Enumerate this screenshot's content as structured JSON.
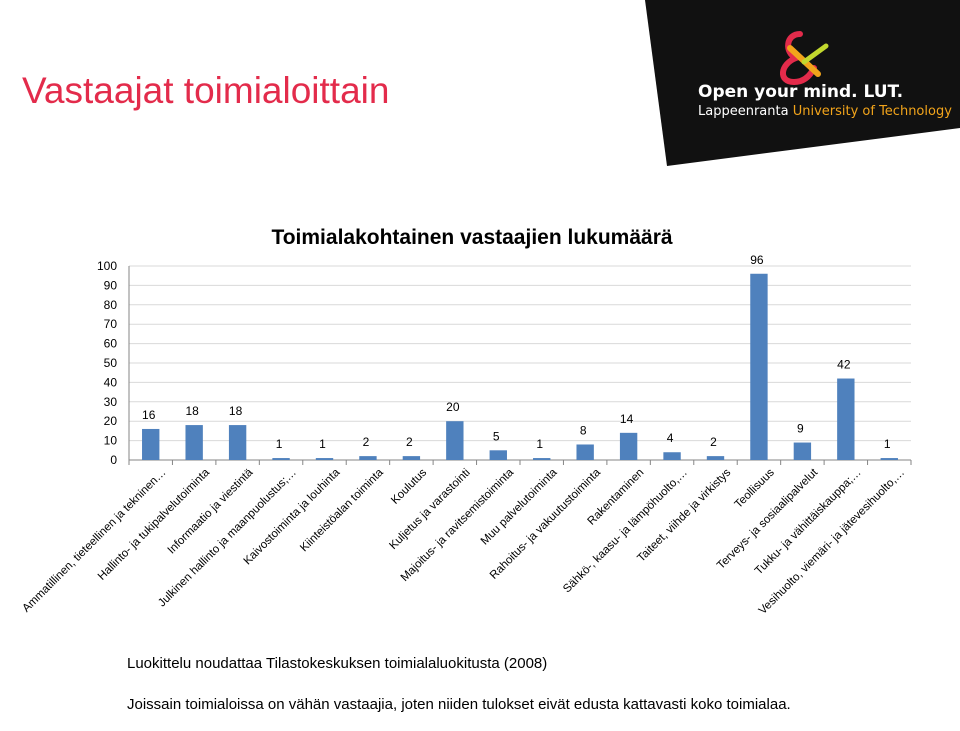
{
  "slide": {
    "title": "Vastaajat toimialoittain",
    "logo_line1": "Open your mind. LUT.",
    "logo_line2_a": "Lappeenranta ",
    "logo_line2_b": "University of Technology",
    "note1": "Luokittelu noudattaa Tilastokeskuksen toimialaluokitusta (2008)",
    "note2": "Joissain toimialoissa on vähän vastaajia, joten niiden tulokset eivät edusta kattavasti koko toimialaa."
  },
  "colors": {
    "title": "#e32b4b",
    "bar": "#4f81bd",
    "logo_bg": "#111111",
    "logo_accent": "#f2a41b"
  },
  "chart_data": {
    "type": "bar",
    "title": "Toimialakohtainen vastaajien lukumäärä",
    "xlabel": "",
    "ylabel": "",
    "ylim": [
      0,
      100
    ],
    "yticks": [
      0,
      10,
      20,
      30,
      40,
      50,
      60,
      70,
      80,
      90,
      100
    ],
    "grid": true,
    "legend": "none",
    "categories": [
      "Ammatillinen, tieteellinen ja tekninen…",
      "Hallinto- ja tukipalvelutoiminta",
      "Informaatio ja viestintä",
      "Julkinen hallinto ja maanpuolustus;…",
      "Kaivostoiminta ja louhinta",
      "Kiinteistöalan toiminta",
      "Koulutus",
      "Kuljetus ja varastointi",
      "Majoitus- ja ravitsemistoiminta",
      "Muu palvelutoiminta",
      "Rahoitus- ja vakuutustoiminta",
      "Rakentaminen",
      "Sähkö-, kaasu- ja lämpöhuolto,…",
      "Taiteet, viihde ja virkistys",
      "Teollisuus",
      "Terveys- ja sosiaalipalvelut",
      "Tukku- ja vähittäiskauppa;…",
      "Vesihuolto, viemäri- ja jätevesihuolto,…"
    ],
    "values": [
      16,
      18,
      18,
      1,
      1,
      2,
      2,
      20,
      5,
      1,
      8,
      14,
      4,
      2,
      96,
      9,
      42,
      1
    ]
  }
}
